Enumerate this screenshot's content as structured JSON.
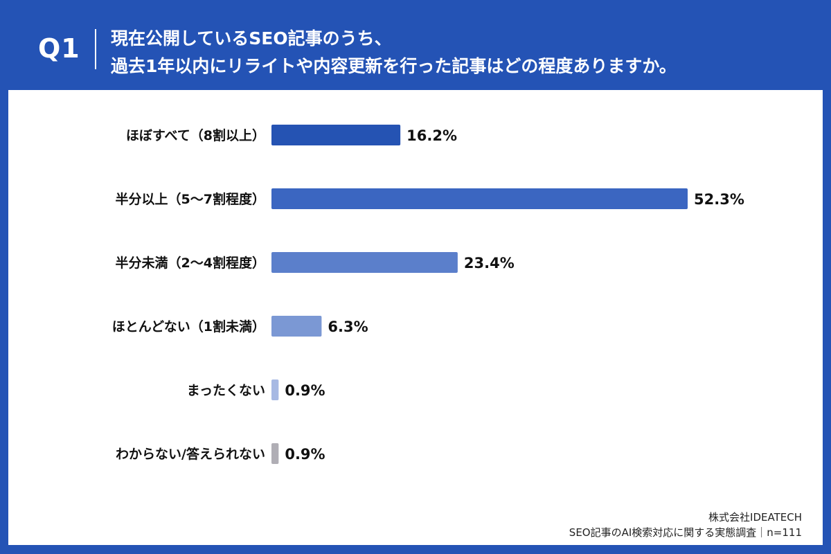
{
  "header": {
    "q_label": "Q1",
    "question_line1": "現在公開しているSEO記事のうち、",
    "question_line2": "過去1年以内にリライトや内容更新を行った記事はどの程度ありますか。"
  },
  "footer": {
    "company": "株式会社IDEATECH",
    "survey": "SEO記事のAI検索対応に関する実態調査｜n=111"
  },
  "colors": {
    "background": "#2453b5",
    "panel": "#ffffff"
  },
  "chart_data": {
    "type": "bar",
    "orientation": "horizontal",
    "categories": [
      "ほぼすべて（8割以上）",
      "半分以上（5～7割程度）",
      "半分未満（2～4割程度）",
      "ほとんどない（1割未満）",
      "まったくない",
      "わからない/答えられない"
    ],
    "values": [
      16.2,
      52.3,
      23.4,
      6.3,
      0.9,
      0.9
    ],
    "value_labels": [
      "16.2%",
      "52.3%",
      "23.4%",
      "6.3%",
      "0.9%",
      "0.9%"
    ],
    "bar_colors": [
      "#2553b3",
      "#3b66c1",
      "#5b7fcb",
      "#7b98d4",
      "#a7b9e3",
      "#b0aeb5"
    ],
    "xlim": [
      0,
      52.3
    ],
    "grid": false,
    "legend": false
  }
}
